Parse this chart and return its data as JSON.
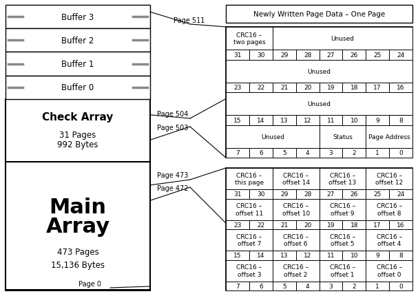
{
  "bg_color": "#ffffff",
  "buf_labels": [
    "Buffer 3",
    "Buffer 2",
    "Buffer 1",
    "Buffer 0"
  ],
  "check_label": [
    "Check Array",
    "31 Pages",
    "992 Bytes"
  ],
  "main_label_line1": "Main",
  "main_label_line2": "Array",
  "main_label_line3": "473 Pages",
  "main_label_line4": "15,136 Bytes",
  "top_box_label": "Newly Written Page Data – One Page",
  "check_table_rows": [
    {
      "type": "data",
      "cells": [
        {
          "text": "CRC16 –\ntwo pages",
          "cols": 2
        },
        {
          "text": "Unused",
          "cols": 6
        }
      ]
    },
    {
      "type": "bits",
      "cells": [
        "31",
        "30",
        "29",
        "28",
        "27",
        "26",
        "25",
        "24"
      ]
    },
    {
      "type": "data",
      "cells": [
        {
          "text": "Unused",
          "cols": 8
        }
      ]
    },
    {
      "type": "bits",
      "cells": [
        "23",
        "22",
        "21",
        "20",
        "19",
        "18",
        "17",
        "16"
      ]
    },
    {
      "type": "data",
      "cells": [
        {
          "text": "Unused",
          "cols": 8
        }
      ]
    },
    {
      "type": "bits",
      "cells": [
        "15",
        "14",
        "13",
        "12",
        "11",
        "10",
        "9",
        "8"
      ]
    },
    {
      "type": "data",
      "cells": [
        {
          "text": "Unused",
          "cols": 4
        },
        {
          "text": "Status",
          "cols": 2
        },
        {
          "text": "Page Address",
          "cols": 2
        }
      ]
    },
    {
      "type": "bits",
      "cells": [
        "7",
        "6",
        "5",
        "4",
        "3",
        "2",
        "1",
        "0"
      ]
    }
  ],
  "main_table_rows": [
    {
      "type": "data",
      "cells": [
        {
          "text": "CRC16 –\nthis page",
          "cols": 2
        },
        {
          "text": "CRC16 –\noffset 14",
          "cols": 2
        },
        {
          "text": "CRC16 –\noffset 13",
          "cols": 2
        },
        {
          "text": "CRC16 –\noffset 12",
          "cols": 2
        }
      ]
    },
    {
      "type": "bits",
      "cells": [
        "31",
        "30",
        "29",
        "28",
        "27",
        "26",
        "25",
        "24"
      ]
    },
    {
      "type": "data",
      "cells": [
        {
          "text": "CRC16 –\noffset 11",
          "cols": 2
        },
        {
          "text": "CRC16 –\noffset 10",
          "cols": 2
        },
        {
          "text": "CRC16 –\noffset 9",
          "cols": 2
        },
        {
          "text": "CRC16 –\noffset 8",
          "cols": 2
        }
      ]
    },
    {
      "type": "bits",
      "cells": [
        "23",
        "22",
        "21",
        "20",
        "19",
        "18",
        "17",
        "16"
      ]
    },
    {
      "type": "data",
      "cells": [
        {
          "text": "CRC16 –\noffset 7",
          "cols": 2
        },
        {
          "text": "CRC16 –\noffset 6",
          "cols": 2
        },
        {
          "text": "CRC16 –\noffset 5",
          "cols": 2
        },
        {
          "text": "CRC16 –\noffset 4",
          "cols": 2
        }
      ]
    },
    {
      "type": "bits",
      "cells": [
        "15",
        "14",
        "13",
        "12",
        "11",
        "10",
        "9",
        "8"
      ]
    },
    {
      "type": "data",
      "cells": [
        {
          "text": "CRC16 –\noffset 3",
          "cols": 2
        },
        {
          "text": "CRC16 –\noffset 2",
          "cols": 2
        },
        {
          "text": "CRC16 –\noffset 1",
          "cols": 2
        },
        {
          "text": "CRC16 –\noffset 0",
          "cols": 2
        }
      ]
    },
    {
      "type": "bits",
      "cells": [
        "7",
        "6",
        "5",
        "4",
        "3",
        "2",
        "1",
        "0"
      ]
    }
  ]
}
